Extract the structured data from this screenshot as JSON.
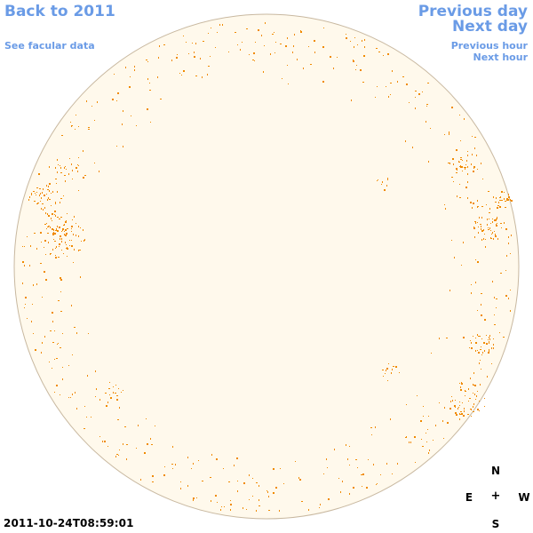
{
  "nav": {
    "back_label": "Back to 2011",
    "facular_label": "See facular data",
    "prev_day_label": "Previous day",
    "next_day_label": "Next day",
    "prev_hour_label": "Previous hour",
    "next_hour_label": "Next hour"
  },
  "compass": {
    "north": "N",
    "south": "S",
    "east": "E",
    "west": "W",
    "center": "+"
  },
  "timestamp": "2011-10-24T08:59:01",
  "colors": {
    "disk_fill": "#fff9ec",
    "disk_stroke": "#c8b8a0",
    "feature": "#f08a00",
    "link": "#6a9be6"
  }
}
